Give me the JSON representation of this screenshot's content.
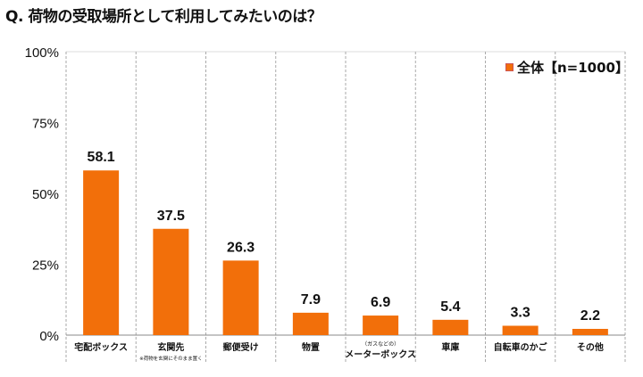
{
  "chart_data": {
    "type": "bar",
    "title": "Q. 荷物の受取場所として利用してみたいのは？",
    "categories": [
      "宅配ボックス",
      "玄関先",
      "郵便受け",
      "物置",
      "メーターボックス",
      "車庫",
      "自転車のかご",
      "その他"
    ],
    "category_notes": [
      "",
      "※荷物を玄関にそのまま置く",
      "",
      "",
      "（ガスなどの）",
      "",
      "",
      ""
    ],
    "series": [
      {
        "name": "全体【n=1000】",
        "values": [
          58.1,
          37.5,
          26.3,
          7.9,
          6.9,
          5.4,
          3.3,
          2.2
        ]
      }
    ],
    "yticks": [
      "0%",
      "25%",
      "50%",
      "75%",
      "100%"
    ],
    "ylim": [
      0,
      100
    ],
    "legend_position": "top-right",
    "grid": "vertical dashed category separators",
    "bar_color": "#f26f0a"
  }
}
